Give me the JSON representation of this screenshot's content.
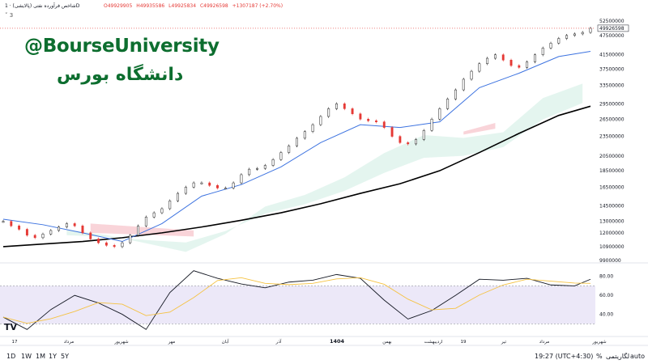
{
  "header": {
    "title": "شاخص فرآورده نفتی (پالایشی) · 1D",
    "ohlc": {
      "open": "O49929905",
      "high": "H49935586",
      "low": "L49925834",
      "close": "C49926598",
      "change": "+1307187 (+2.70%)"
    },
    "indicator_count": "3"
  },
  "watermark": {
    "line1": "@BourseUniversity",
    "line2": "دانشگاه بورس"
  },
  "colors": {
    "up": "#1e1e1e",
    "down": "#e53935",
    "tenkan": "#3d73e0",
    "kijun_sma": "#000000",
    "cloud_green": "#dff3ec",
    "cloud_red": "#f8c9d0",
    "rsi": "#131722",
    "rsi_ma": "#f5c242",
    "rsi_band": "#ece8f8"
  },
  "chart_data": {
    "type": "line",
    "price_axis": {
      "scale": "log",
      "ticks": [
        "52500000",
        "47500000",
        "41500000",
        "37500000",
        "33500000",
        "29500000",
        "26500000",
        "23500000",
        "20500000",
        "18500000",
        "16500000",
        "14500000",
        "13000000",
        "12000000",
        "10900000",
        "9900000"
      ],
      "last_price": "49926598"
    },
    "time_axis": {
      "ticks": [
        "17",
        "مرداد",
        "شهریور",
        "مهر",
        "آبان",
        "آذر",
        "1404",
        "بهمن",
        "اردیبهشت",
        "19",
        "تیر",
        "مرداد",
        "شهریور"
      ]
    },
    "series": [
      {
        "role": "price",
        "x": [
          0,
          1,
          2,
          3,
          4,
          5,
          6,
          7,
          8,
          9,
          10,
          11,
          12,
          13,
          14,
          15,
          16,
          17,
          18,
          19,
          20,
          21,
          22,
          23,
          24,
          25,
          26,
          27,
          28,
          29,
          30,
          31,
          32,
          33,
          34,
          35,
          36,
          37,
          38,
          39,
          40,
          41,
          42,
          43,
          44,
          45,
          46,
          47,
          48,
          49,
          50,
          51,
          52,
          53,
          54,
          55,
          56,
          57,
          58,
          59,
          60,
          61,
          62,
          63,
          64,
          65,
          66,
          67,
          68,
          69,
          70,
          71,
          72,
          73,
          74
        ],
        "values": [
          13000000,
          12600000,
          12300000,
          11800000,
          11600000,
          11900000,
          12200000,
          12500000,
          12800000,
          12600000,
          12000000,
          11500000,
          11200000,
          11000000,
          10900000,
          11200000,
          11800000,
          12600000,
          13400000,
          13800000,
          14200000,
          15000000,
          15800000,
          16500000,
          17000000,
          17000000,
          16700000,
          16400000,
          16400000,
          17000000,
          18000000,
          18700000,
          18800000,
          19200000,
          20000000,
          21000000,
          22000000,
          23200000,
          24300000,
          25500000,
          27000000,
          28500000,
          29500000,
          28500000,
          27500000,
          26500000,
          26200000,
          26000000,
          25000000,
          23500000,
          22500000,
          22300000,
          23000000,
          24500000,
          26500000,
          28500000,
          30500000,
          32500000,
          35000000,
          37000000,
          39000000,
          40500000,
          41500000,
          40000000,
          38500000,
          38000000,
          39500000,
          41500000,
          43500000,
          45000000,
          46500000,
          47500000,
          48000000,
          48500000,
          49926598
        ]
      },
      {
        "role": "tenkan",
        "x": [
          0,
          5,
          10,
          15,
          20,
          25,
          30,
          35,
          40,
          45,
          50,
          55,
          60,
          65,
          70,
          74
        ],
        "values": [
          13200000,
          12700000,
          12000000,
          11300000,
          12800000,
          15500000,
          16800000,
          19000000,
          22500000,
          25500000,
          25000000,
          26000000,
          33000000,
          36500000,
          41000000,
          42500000
        ]
      },
      {
        "role": "sma",
        "x": [
          0,
          5,
          10,
          15,
          20,
          25,
          30,
          35,
          40,
          45,
          50,
          55,
          60,
          65,
          70,
          74
        ],
        "values": [
          10900000,
          11100000,
          11300000,
          11600000,
          12000000,
          12500000,
          13100000,
          13800000,
          14700000,
          15800000,
          16900000,
          18500000,
          21000000,
          24000000,
          27200000,
          29000000
        ]
      },
      {
        "role": "rsi",
        "x": [
          0,
          3,
          6,
          9,
          12,
          15,
          18,
          21,
          24,
          27,
          30,
          33,
          36,
          39,
          42,
          45,
          48,
          51,
          54,
          57,
          60,
          63,
          66,
          69,
          72,
          74
        ],
        "values": [
          37,
          24,
          45,
          60,
          52,
          40,
          24,
          63,
          86,
          78,
          72,
          68,
          74,
          76,
          82,
          78,
          55,
          35,
          44,
          60,
          77,
          76,
          78,
          71,
          70,
          77
        ]
      }
    ],
    "rsi_axis": {
      "ticks": [
        "80.00",
        "60.00",
        "40.00"
      ],
      "band": [
        30,
        70
      ]
    }
  },
  "bottombar": {
    "timeframes": [
      "1D",
      "1W",
      "1M",
      "1Y",
      "5Y"
    ],
    "time": "19:27 (UTC+4:30)",
    "percent": "%",
    "log": "لگاریتمی",
    "auto": "auto"
  }
}
